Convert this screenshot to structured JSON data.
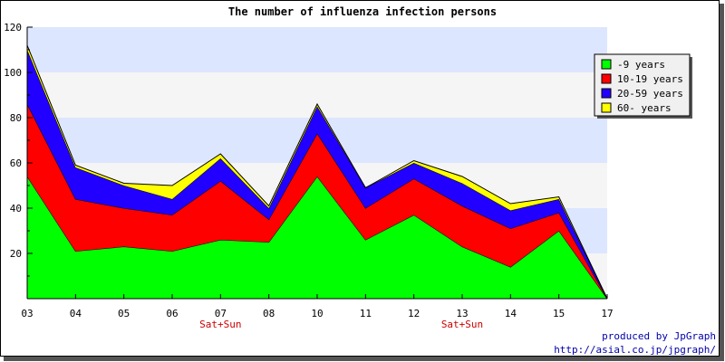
{
  "chart_data": {
    "type": "area",
    "stacked": true,
    "title": "The number of influenza infection persons",
    "xlabel": "",
    "ylabel": "",
    "categories": [
      "03",
      "04",
      "05",
      "06",
      "07",
      "08",
      "10",
      "11",
      "12",
      "13",
      "14",
      "15",
      "17"
    ],
    "category_notes": [
      {
        "category": "07",
        "text": "Sat+Sun"
      },
      {
        "category": "13",
        "text": "Sat+Sun"
      }
    ],
    "ylim": [
      0,
      120
    ],
    "yticks": [
      20,
      40,
      60,
      80,
      100,
      120
    ],
    "grid": "horizontal bands",
    "legend_position": "top-right",
    "series": [
      {
        "name": "-9 years",
        "color": "#00ff00",
        "values": [
          54,
          21,
          23,
          21,
          26,
          25,
          54,
          26,
          37,
          23,
          14,
          30,
          0
        ]
      },
      {
        "name": "10-19 years",
        "color": "#ff0000",
        "values": [
          32,
          23,
          17,
          16,
          26,
          10,
          19,
          14,
          16,
          18,
          17,
          8,
          0
        ]
      },
      {
        "name": "20-59 years",
        "color": "#2200ff",
        "values": [
          24,
          14,
          10,
          7,
          10,
          5,
          12,
          9,
          7,
          10,
          8,
          6,
          0
        ]
      },
      {
        "name": "60- years",
        "color": "#ffff00",
        "values": [
          2,
          1,
          1,
          6,
          2,
          1,
          1,
          0,
          1,
          3,
          3,
          1,
          0
        ]
      }
    ]
  },
  "credits": {
    "line1": "produced by JpGraph",
    "line2": "http://asial.co.jp/jpgraph/"
  }
}
